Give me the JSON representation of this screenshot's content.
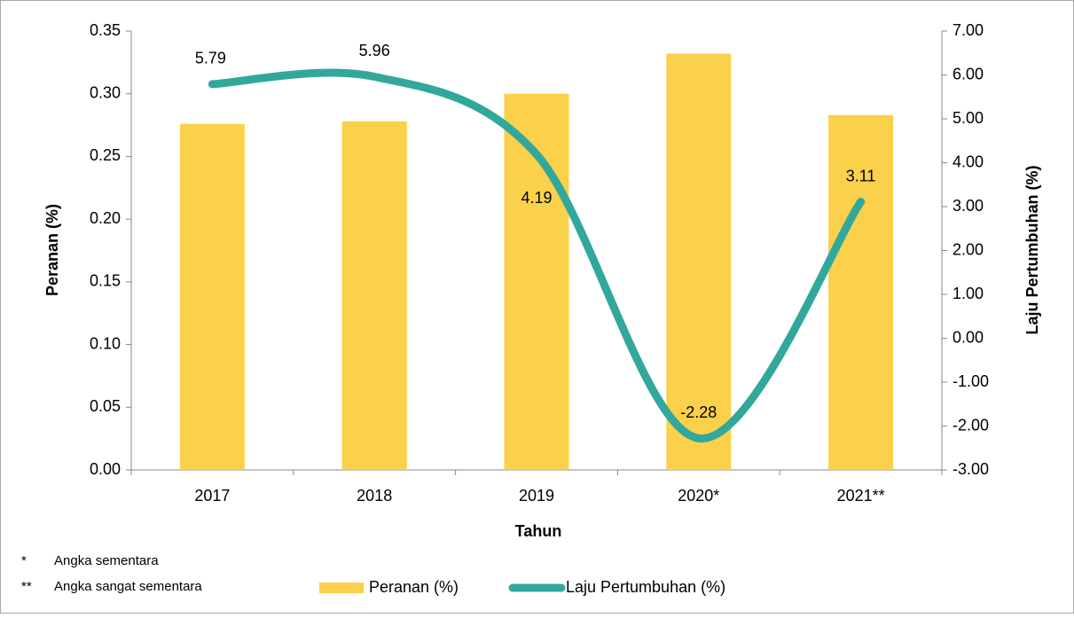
{
  "chart_data": {
    "type": "bar_line",
    "categories": [
      "2017",
      "2018",
      "2019",
      "2020*",
      "2021**"
    ],
    "x_label": "Tahun",
    "y_label": "Peranan (%)",
    "y2_label": "Laju Pertumbuhan (%)",
    "series": [
      {
        "name": "Peranan (%)",
        "type": "bar",
        "color": "#fbd04b",
        "values": [
          0.276,
          0.278,
          0.3,
          0.332,
          0.283
        ]
      },
      {
        "name": "Laju Pertumbuhan (%)",
        "type": "line",
        "axis": "y2",
        "color": "#31a89b",
        "values": [
          5.79,
          5.96,
          4.19,
          -2.28,
          3.11
        ]
      }
    ],
    "ylim": [
      0,
      0.35
    ],
    "yticks": [
      {
        "value": 0,
        "label": "0.00"
      },
      {
        "value": 0.05,
        "label": "0.05"
      },
      {
        "value": 0.1,
        "label": "0.10"
      },
      {
        "value": 0.15,
        "label": "0.15"
      },
      {
        "value": 0.2,
        "label": "0.20"
      },
      {
        "value": 0.25,
        "label": "0.25"
      },
      {
        "value": 0.3,
        "label": "0.30"
      },
      {
        "value": 0.35,
        "label": "0.35"
      }
    ],
    "y2lim": [
      -3,
      7
    ],
    "y2ticks": [
      {
        "value": -3,
        "label": "-3.00"
      },
      {
        "value": -2,
        "label": "-2.00"
      },
      {
        "value": -1,
        "label": "-1.00"
      },
      {
        "value": 0,
        "label": "0.00"
      },
      {
        "value": 1,
        "label": "1.00"
      },
      {
        "value": 2,
        "label": "2.00"
      },
      {
        "value": 3,
        "label": "3.00"
      },
      {
        "value": 4,
        "label": "4.00"
      },
      {
        "value": 5,
        "label": "5.00"
      },
      {
        "value": 6,
        "label": "6.00"
      },
      {
        "value": 7,
        "label": "7.00"
      }
    ],
    "legend": "bottom",
    "footnotes": [
      {
        "mark": "*",
        "text": "Angka sementara"
      },
      {
        "mark": "**",
        "text": "Angka sangat sementara"
      }
    ]
  }
}
